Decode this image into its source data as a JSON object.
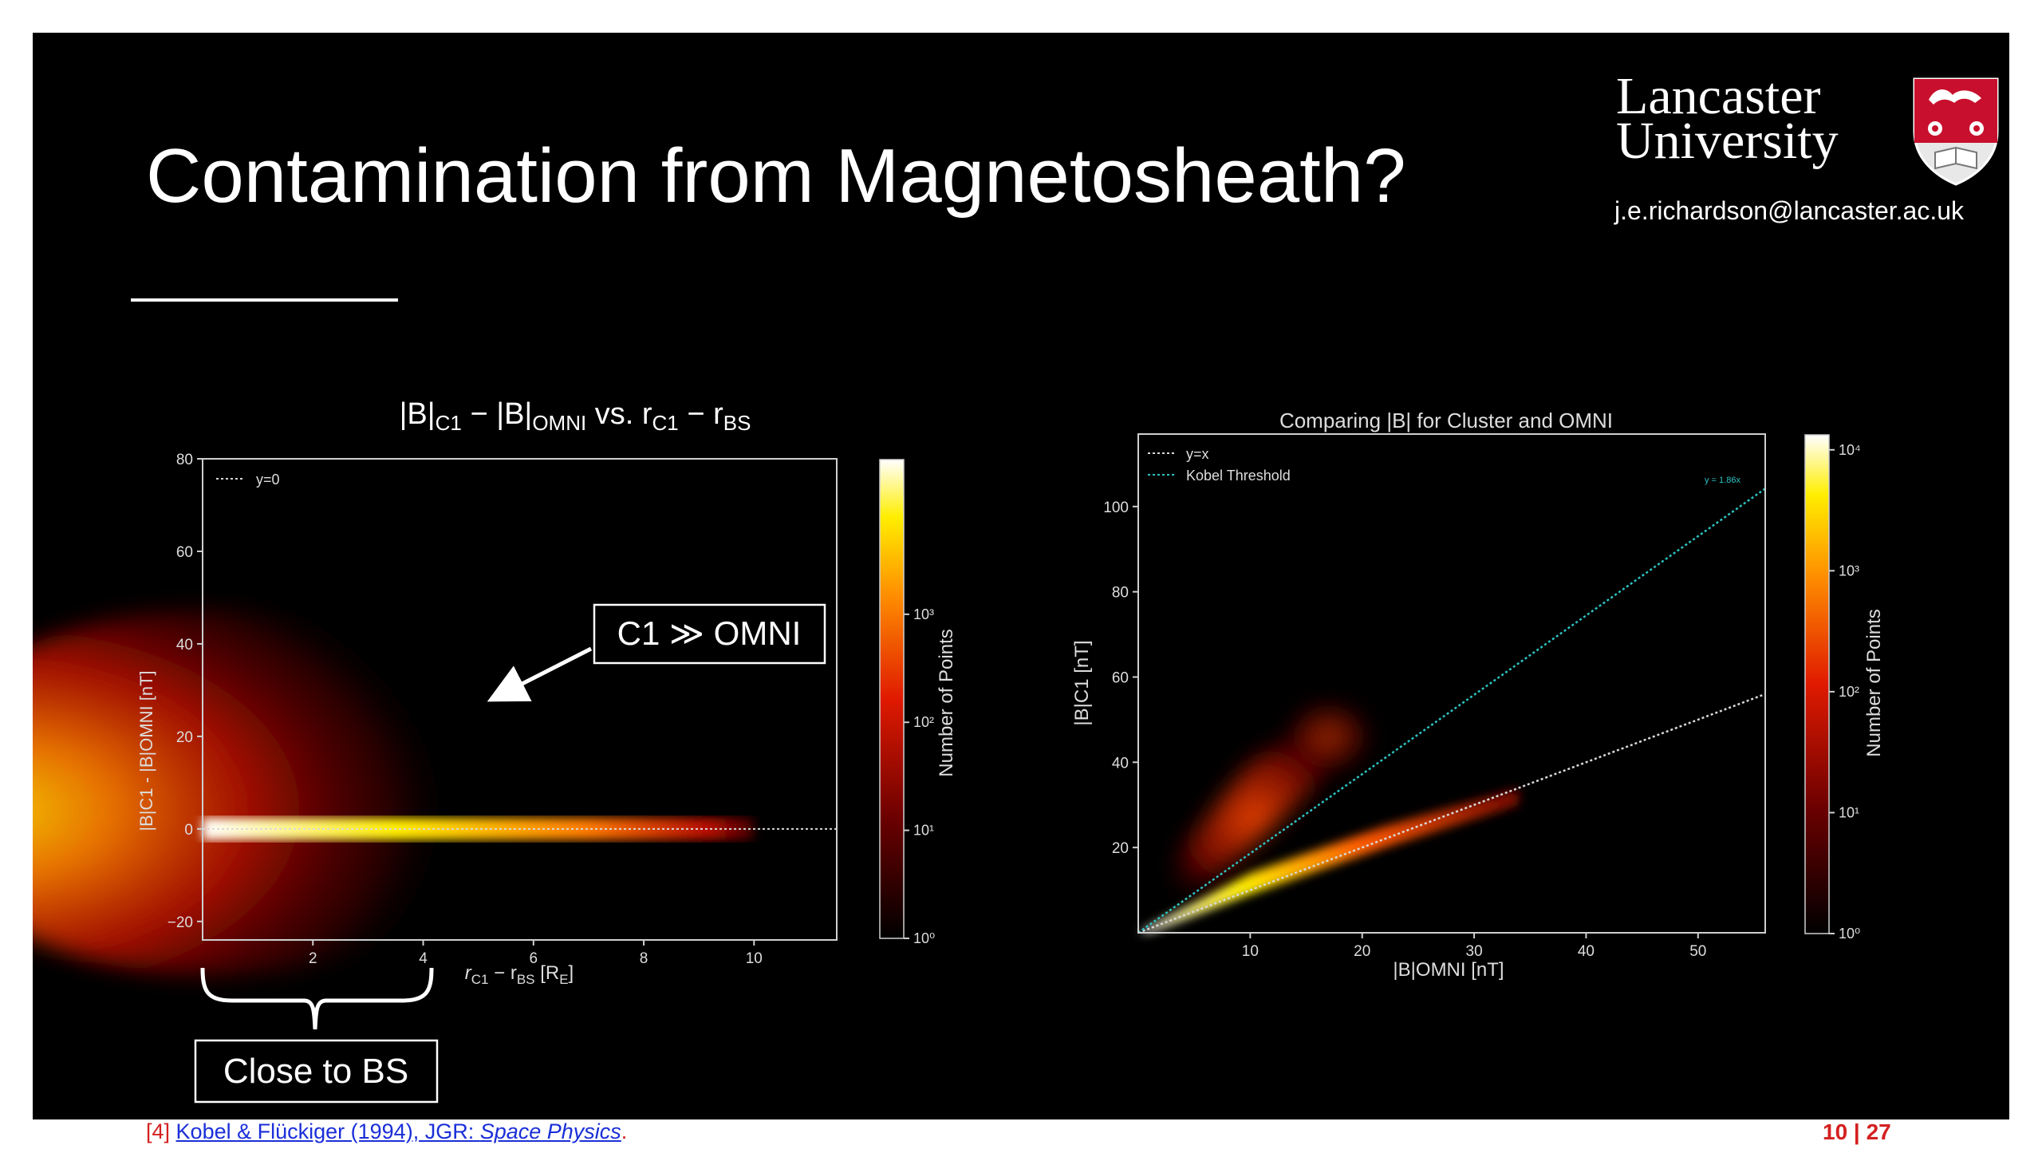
{
  "slide": {
    "title": "Contamination from Magnetosheath?",
    "logo_line1": "Lancaster",
    "logo_line2": "University",
    "email": "j.e.richardson@lancaster.ac.uk",
    "shield_icon": "lancaster-crest-icon",
    "callout_text": "C1 ≫  OMNI",
    "bracket_label": "Close to BS",
    "citation_ref": "[4]",
    "citation_link": "Kobel & Flückiger (1994), JGR: ",
    "citation_journal": "Space Physics",
    "citation_end": ".",
    "page_current": "10",
    "page_sep": " | ",
    "page_total": "27"
  },
  "chart_data": [
    {
      "type": "heatmap",
      "title_parts": [
        "|B|",
        "C1",
        " − |B|",
        "OMNI",
        " vs. r",
        "C1",
        " − r",
        "BS"
      ],
      "xlabel_parts": [
        "r",
        "C1",
        " − r",
        "BS",
        " [R",
        "E",
        "]"
      ],
      "ylabel": "|B|C1 - |B|OMNI [nT]",
      "xlim": [
        0,
        11.5
      ],
      "ylim": [
        -24,
        80
      ],
      "xticks": [
        2,
        4,
        6,
        8,
        10
      ],
      "yticks": [
        -20,
        0,
        20,
        40,
        60,
        80
      ],
      "legend": [
        {
          "name": "y=0",
          "style": "dotted",
          "color": "#d9d9d9"
        }
      ],
      "legend_position": "upper-left",
      "series_line": {
        "name": "y=0",
        "x": [
          0,
          11.5
        ],
        "y": [
          0,
          0
        ]
      },
      "colorbar": {
        "label": "Number of Points",
        "scale": "log",
        "ticks": [
          "10⁰",
          "10¹",
          "10²",
          "10³"
        ]
      }
    },
    {
      "type": "heatmap",
      "title": "Comparing |B| for Cluster and OMNI",
      "xlabel": "|B|OMNI [nT]",
      "ylabel": "|B|C1 [nT]",
      "xlim": [
        0,
        56
      ],
      "ylim": [
        0,
        117
      ],
      "xticks": [
        10,
        20,
        30,
        40,
        50
      ],
      "yticks": [
        20,
        40,
        60,
        80,
        100
      ],
      "legend": [
        {
          "name": "y=x",
          "style": "dotted",
          "color": "#d9d9d9"
        },
        {
          "name": "Kobel Threshold",
          "style": "dotted",
          "color": "#2ec4c4"
        }
      ],
      "legend_position": "upper-left",
      "annotation": "y = 1.86x",
      "lines": [
        {
          "name": "y=x",
          "x": [
            0,
            56
          ],
          "y": [
            0,
            56
          ]
        },
        {
          "name": "Kobel Threshold",
          "x": [
            0,
            56
          ],
          "y": [
            0,
            104.2
          ]
        }
      ],
      "colorbar": {
        "label": "Number of Points",
        "scale": "log",
        "ticks": [
          "10⁰",
          "10¹",
          "10²",
          "10³",
          "10⁴"
        ]
      }
    }
  ]
}
